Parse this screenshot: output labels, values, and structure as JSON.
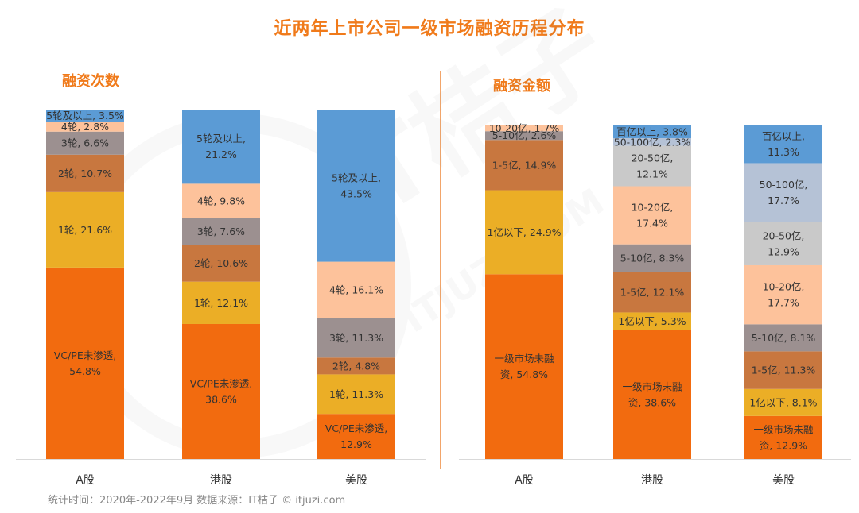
{
  "title": "近两年上市公司一级市场融资历程分布",
  "footer": "统计时间：2020年-2022年9月   数据来源：IT桔子 © itjuzi.com",
  "watermark": {
    "brand": "IT桔子",
    "url": "ITJUZI.COM"
  },
  "colors": {
    "title": "#f07a1a"
  },
  "chart_data": [
    {
      "type": "bar",
      "stacked": true,
      "title": "融资次数",
      "categories": [
        "A股",
        "港股",
        "美股"
      ],
      "ylim": [
        0,
        100
      ],
      "series": [
        {
          "name": "VC/PE未渗透",
          "color": "#f26b0f",
          "values": [
            54.8,
            38.6,
            12.9
          ],
          "labels": [
            [
              "VC/PE未渗透,",
              "54.8%"
            ],
            [
              "VC/PE未渗透,",
              "38.6%"
            ],
            [
              "VC/PE未渗透,",
              "12.9%"
            ]
          ]
        },
        {
          "name": "1轮",
          "color": "#ebae26",
          "values": [
            21.6,
            12.1,
            11.3
          ],
          "labels": [
            [
              "1轮, 21.6%"
            ],
            [
              "1轮, 12.1%"
            ],
            [
              "1轮, 11.3%"
            ]
          ]
        },
        {
          "name": "2轮",
          "color": "#c8773f",
          "values": [
            10.7,
            10.6,
            4.8
          ],
          "labels": [
            [
              "2轮, 10.7%"
            ],
            [
              "2轮, 10.6%"
            ],
            [
              "2轮, 4.8%"
            ]
          ]
        },
        {
          "name": "3轮",
          "color": "#9c9090",
          "values": [
            6.6,
            7.6,
            11.3
          ],
          "labels": [
            [
              "3轮, 6.6%"
            ],
            [
              "3轮, 7.6%"
            ],
            [
              "3轮, 11.3%"
            ]
          ]
        },
        {
          "name": "4轮",
          "color": "#fdc29b",
          "values": [
            2.8,
            9.8,
            16.1
          ],
          "labels": [
            [
              "4轮, 2.8%"
            ],
            [
              "4轮, 9.8%"
            ],
            [
              "4轮, 16.1%"
            ]
          ]
        },
        {
          "name": "5轮及以上",
          "color": "#5b9bd5",
          "values": [
            3.5,
            21.2,
            43.5
          ],
          "labels": [
            [
              "5轮及以上, 3.5%"
            ],
            [
              "5轮及以上,",
              "21.2%"
            ],
            [
              "5轮及以上,",
              "43.5%"
            ]
          ]
        }
      ]
    },
    {
      "type": "bar",
      "stacked": true,
      "title": "融资金额",
      "categories": [
        "A股",
        "港股",
        "美股"
      ],
      "ylim": [
        0,
        100
      ],
      "series": [
        {
          "name": "一级市场未融资",
          "color": "#f26b0f",
          "values": [
            54.8,
            38.6,
            12.9
          ],
          "labels": [
            [
              "一级市场未融",
              "资, 54.8%"
            ],
            [
              "一级市场未融",
              "资, 38.6%"
            ],
            [
              "一级市场未融",
              "资, 12.9%"
            ]
          ]
        },
        {
          "name": "1亿以下",
          "color": "#ebae26",
          "values": [
            24.9,
            5.3,
            8.1
          ],
          "labels": [
            [
              "1亿以下, 24.9%"
            ],
            [
              "1亿以下, 5.3%"
            ],
            [
              "1亿以下, 8.1%"
            ]
          ]
        },
        {
          "name": "1-5亿",
          "color": "#c8773f",
          "values": [
            14.9,
            12.1,
            11.3
          ],
          "labels": [
            [
              "1-5亿, 14.9%"
            ],
            [
              "1-5亿, 12.1%"
            ],
            [
              "1-5亿, 11.3%"
            ]
          ]
        },
        {
          "name": "5-10亿",
          "color": "#9c9090",
          "values": [
            2.6,
            8.3,
            8.1
          ],
          "labels": [
            [
              "5-10亿, 2.6%"
            ],
            [
              "5-10亿, 8.3%"
            ],
            [
              "5-10亿, 8.1%"
            ]
          ]
        },
        {
          "name": "10-20亿",
          "color": "#fdc29b",
          "values": [
            1.7,
            17.4,
            17.7
          ],
          "labels": [
            [
              "10-20亿, 1.7%"
            ],
            [
              "10-20亿,",
              "17.4%"
            ],
            [
              "10-20亿,",
              "17.7%"
            ]
          ]
        },
        {
          "name": "20-50亿",
          "color": "#c9c9c9",
          "values": [
            0,
            12.1,
            12.9
          ],
          "labels": [
            [],
            [
              "20-50亿,",
              "12.1%"
            ],
            [
              "20-50亿,",
              "12.9%"
            ]
          ]
        },
        {
          "name": "50-100亿",
          "color": "#b5c2d6",
          "values": [
            0,
            2.3,
            17.7
          ],
          "labels": [
            [],
            [
              "50-100亿, 2.3%"
            ],
            [
              "50-100亿,",
              "17.7%"
            ]
          ]
        },
        {
          "name": "百亿以上",
          "color": "#5b9bd5",
          "values": [
            0,
            3.8,
            11.3
          ],
          "labels": [
            [],
            [
              "百亿以上, 3.8%"
            ],
            [
              "百亿以上,",
              "11.3%"
            ]
          ]
        }
      ]
    }
  ]
}
